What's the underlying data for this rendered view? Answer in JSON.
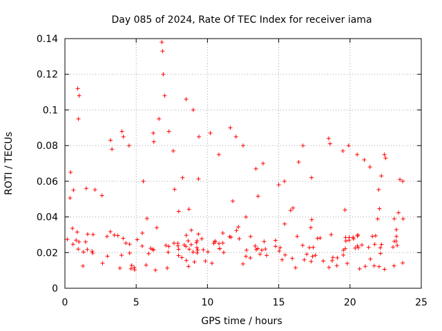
{
  "chart_data": {
    "type": "scatter",
    "title": "Day 085 of 2024, Rate Of TEC Index for receiver iama",
    "xlabel": "GPS time / hours",
    "ylabel": "ROTI / TECUs",
    "xlim": [
      0,
      25
    ],
    "ylim": [
      0,
      0.14
    ],
    "xticks": [
      0,
      5,
      10,
      15,
      20,
      25
    ],
    "xtick_labels": [
      "0",
      "5",
      "10",
      "15",
      "20",
      "25"
    ],
    "yticks": [
      0,
      0.02,
      0.04,
      0.06,
      0.08,
      0.1,
      0.12,
      0.14
    ],
    "ytick_labels": [
      "0",
      "0.02",
      "0.04",
      "0.06",
      "0.08",
      "0.1",
      "0.12",
      "0.14"
    ],
    "grid": true,
    "marker": "+",
    "series": [
      {
        "name": "ROTI",
        "color": "#ff0000",
        "data_extent": {
          "x": [
            0,
            24
          ],
          "y": [
            0.003,
            0.138
          ]
        },
        "x": [
          0.4,
          0.6,
          0.9,
          0.95,
          1.0,
          1.5,
          2.6,
          3.2,
          3.3,
          4.0,
          4.1,
          4.5,
          5.5,
          6.2,
          6.6,
          6.8,
          6.85,
          6.9,
          7.0,
          7.3,
          7.6,
          8.5,
          9.0,
          9.4,
          10.2,
          10.8,
          11.6,
          12.0,
          12.5,
          13.4,
          13.9,
          15.0,
          15.4,
          16.0,
          16.7,
          17.3,
          18.5,
          18.6,
          19.5,
          19.9,
          20.5,
          21.0,
          21.4,
          22.2,
          22.5,
          23.5,
          23.7
        ],
        "y": [
          0.065,
          0.055,
          0.112,
          0.095,
          0.108,
          0.056,
          0.052,
          0.083,
          0.078,
          0.088,
          0.085,
          0.08,
          0.06,
          0.087,
          0.095,
          0.138,
          0.133,
          0.12,
          0.108,
          0.088,
          0.077,
          0.106,
          0.1,
          0.085,
          0.087,
          0.075,
          0.09,
          0.085,
          0.08,
          0.067,
          0.07,
          0.058,
          0.06,
          0.045,
          0.08,
          0.062,
          0.084,
          0.081,
          0.077,
          0.08,
          0.075,
          0.072,
          0.068,
          0.063,
          0.073,
          0.061,
          0.06
        ]
      }
    ]
  }
}
